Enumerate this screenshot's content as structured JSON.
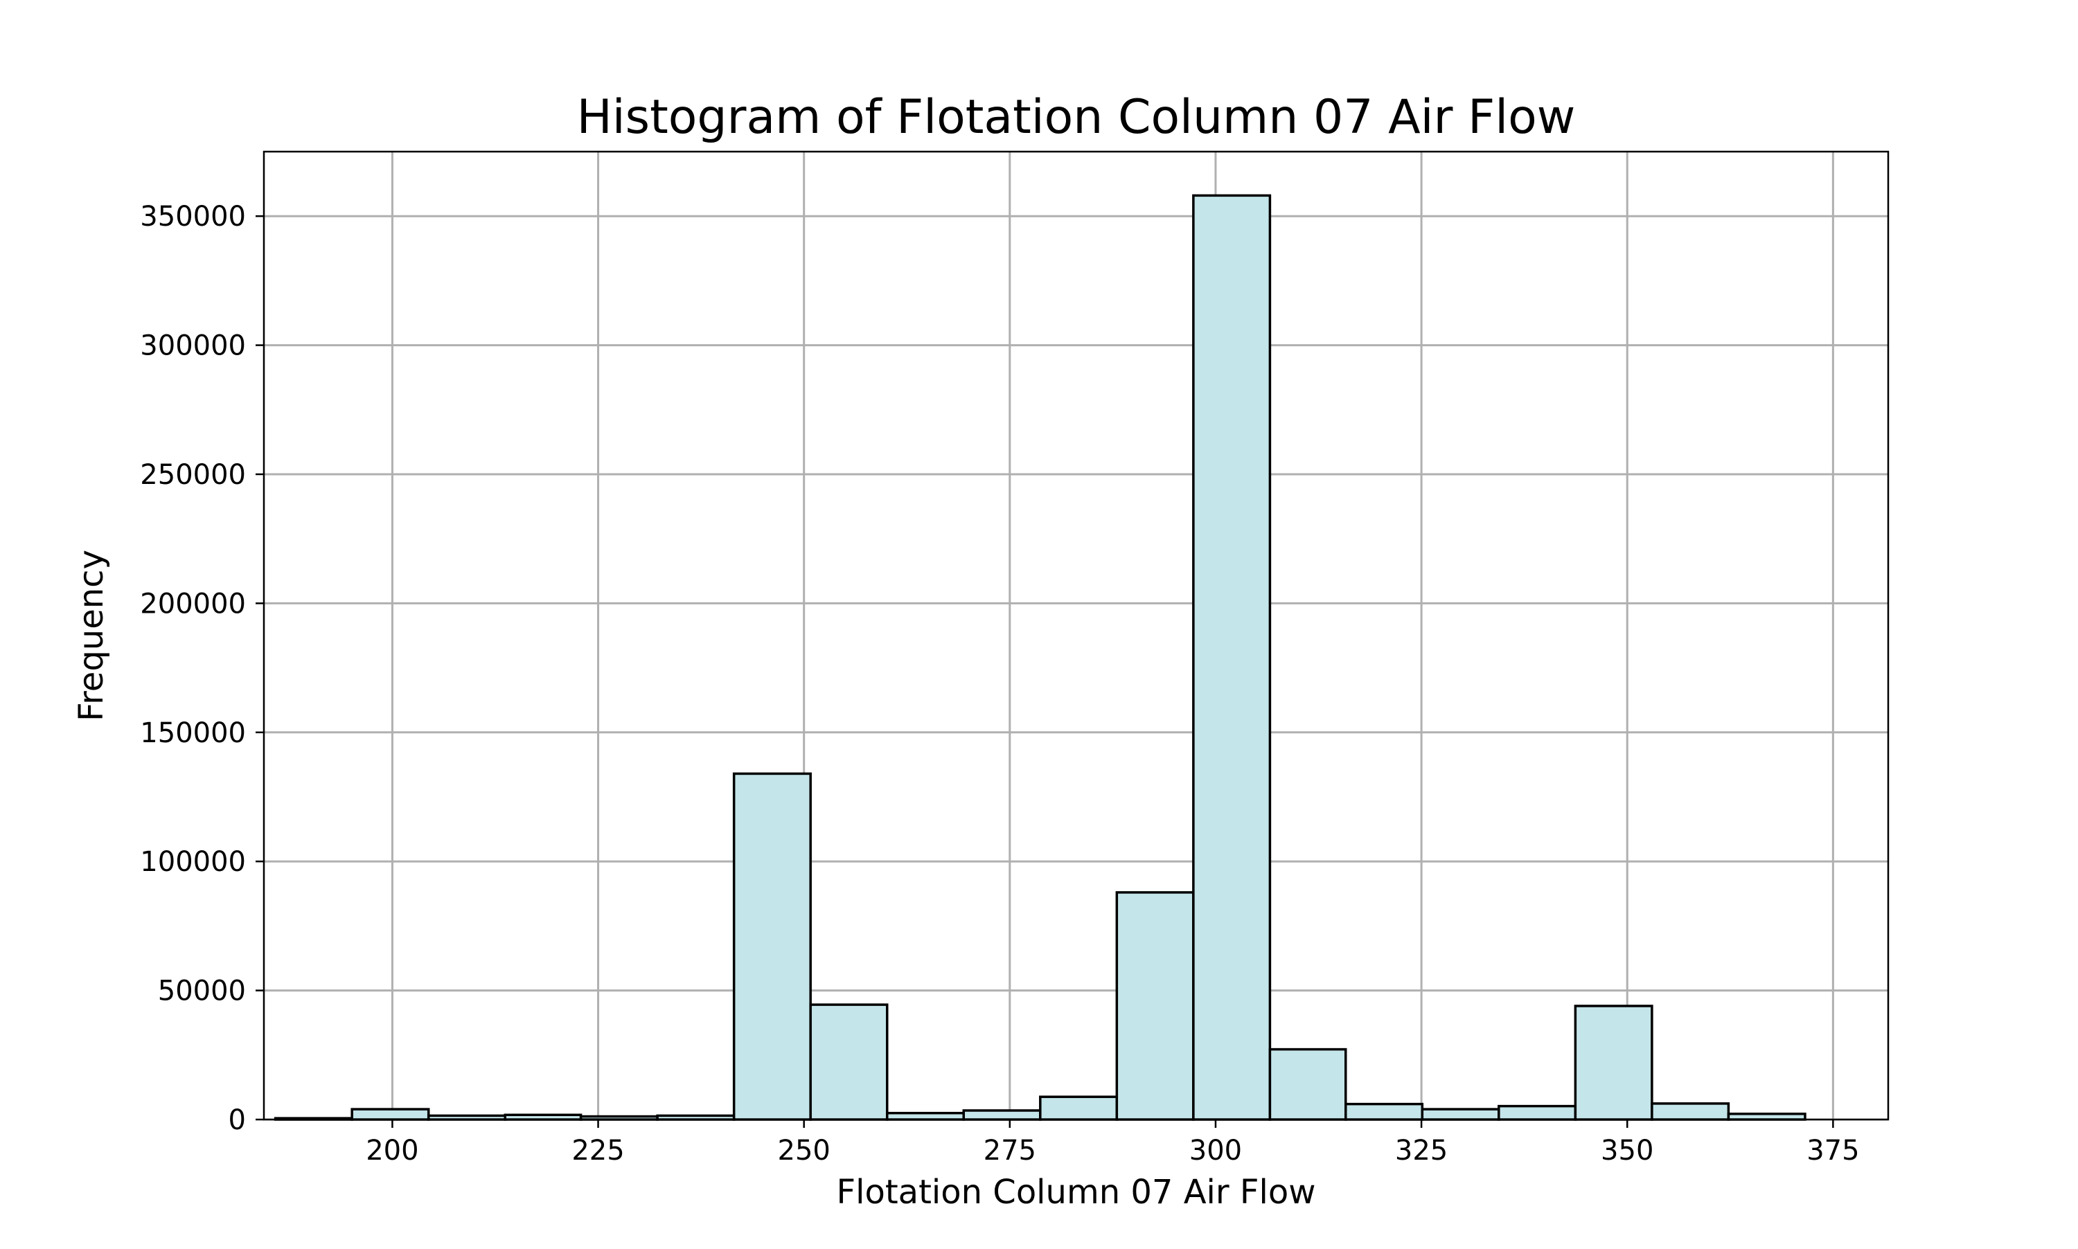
{
  "chart_data": {
    "type": "bar",
    "title": "Histogram of Flotation Column 07 Air Flow",
    "xlabel": "Flotation Column 07 Air Flow",
    "ylabel": "Frequency",
    "xlim": [
      184.4,
      381.7
    ],
    "ylim": [
      0,
      375000
    ],
    "xticks": [
      200,
      225,
      250,
      275,
      300,
      325,
      350,
      375
    ],
    "xtick_labels": [
      "200",
      "225",
      "250",
      "275",
      "300",
      "325",
      "350",
      "375"
    ],
    "yticks": [
      0,
      50000,
      100000,
      150000,
      200000,
      250000,
      300000,
      350000
    ],
    "ytick_labels": [
      "0",
      "50000",
      "100000",
      "150000",
      "200000",
      "250000",
      "300000",
      "350000"
    ],
    "grid": true,
    "bar_color": "#c4e5e9",
    "edge_color": "#000000",
    "bin_edges": [
      185.8,
      195.1,
      204.4,
      213.7,
      222.9,
      232.2,
      241.5,
      250.8,
      260.1,
      269.4,
      278.7,
      288.0,
      297.3,
      306.6,
      315.8,
      325.1,
      334.4,
      343.7,
      353.0,
      362.3,
      371.6
    ],
    "values": [
      500,
      4000,
      1500,
      1800,
      1200,
      1500,
      134000,
      44500,
      2500,
      3500,
      8800,
      88000,
      358000,
      27200,
      6000,
      4000,
      5200,
      44000,
      6200,
      2200
    ]
  }
}
